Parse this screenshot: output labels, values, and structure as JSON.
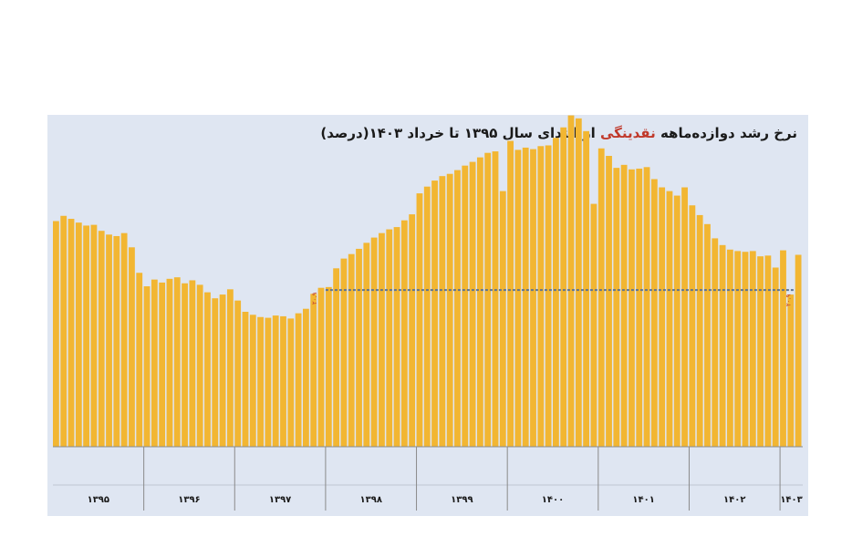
{
  "title": {
    "before": "نرخ رشد دوازده‌ماهه",
    "highlight": "نقدینگی",
    "after": "از ابتدای  سال ۱۳۹۵ تا خرداد ۱۴۰۳(درصد)"
  },
  "colors": {
    "bar": "#f2b632",
    "bar_edge": "#e0a21d",
    "reference_line": "#5e7391",
    "reference_label": "#c0392b",
    "panel": "#dfe6f2",
    "highlight": "#c0392b"
  },
  "chart_data": {
    "type": "bar",
    "title": "نرخ رشد دوازده‌ماهه نقدینگی از ابتدای سال ۱۳۹۵ تا خرداد ۱۴۰۳(درصد)",
    "ylim": [
      0,
      45
    ],
    "years": [
      {
        "label": "۱۳۹۵",
        "values": [
          30.1,
          30.8,
          30.4,
          29.9,
          29.5,
          29.6,
          28.8,
          28.3,
          28.1,
          28.5,
          26.6,
          23.2
        ]
      },
      {
        "label": "۱۳۹۶",
        "values": [
          21.4,
          22.3,
          21.9,
          22.4,
          22.6,
          21.8,
          22.2,
          21.6,
          20.6,
          19.8,
          20.3,
          21.0
        ]
      },
      {
        "label": "۱۳۹۷",
        "values": [
          19.5,
          18.0,
          17.6,
          17.3,
          17.2,
          17.5,
          17.4,
          17.1,
          17.8,
          18.4,
          20.4,
          21.2
        ]
      },
      {
        "label": "۱۳۹۸",
        "values": [
          21.3,
          23.8,
          25.1,
          25.7,
          26.4,
          27.2,
          27.9,
          28.5,
          29.0,
          29.3,
          30.2,
          31.0
        ]
      },
      {
        "label": "۱۳۹۹",
        "values": [
          33.8,
          34.7,
          35.5,
          36.1,
          36.4,
          36.9,
          37.5,
          38.0,
          38.6,
          39.2,
          39.4,
          34.1
        ]
      },
      {
        "label": "۱۴۰۰",
        "values": [
          40.8,
          39.6,
          39.9,
          39.7,
          40.1,
          40.2,
          41.2,
          42.6,
          44.2,
          43.8,
          42.1,
          32.4
        ]
      },
      {
        "label": "۱۴۰۱",
        "values": [
          39.8,
          38.8,
          37.2,
          37.6,
          37.0,
          37.1,
          37.3,
          35.7,
          34.6,
          34.1,
          33.5,
          34.6
        ]
      },
      {
        "label": "۱۴۰۲",
        "values": [
          32.2,
          30.9,
          29.7,
          27.8,
          26.9,
          26.3,
          26.1,
          26.0,
          26.1,
          25.4,
          25.5,
          23.9
        ]
      },
      {
        "label": "۱۴۰۳",
        "values": [
          26.2,
          20.3,
          25.6
        ]
      }
    ],
    "reference_line": {
      "value": 20.9,
      "label": "۲۰.۹"
    }
  }
}
